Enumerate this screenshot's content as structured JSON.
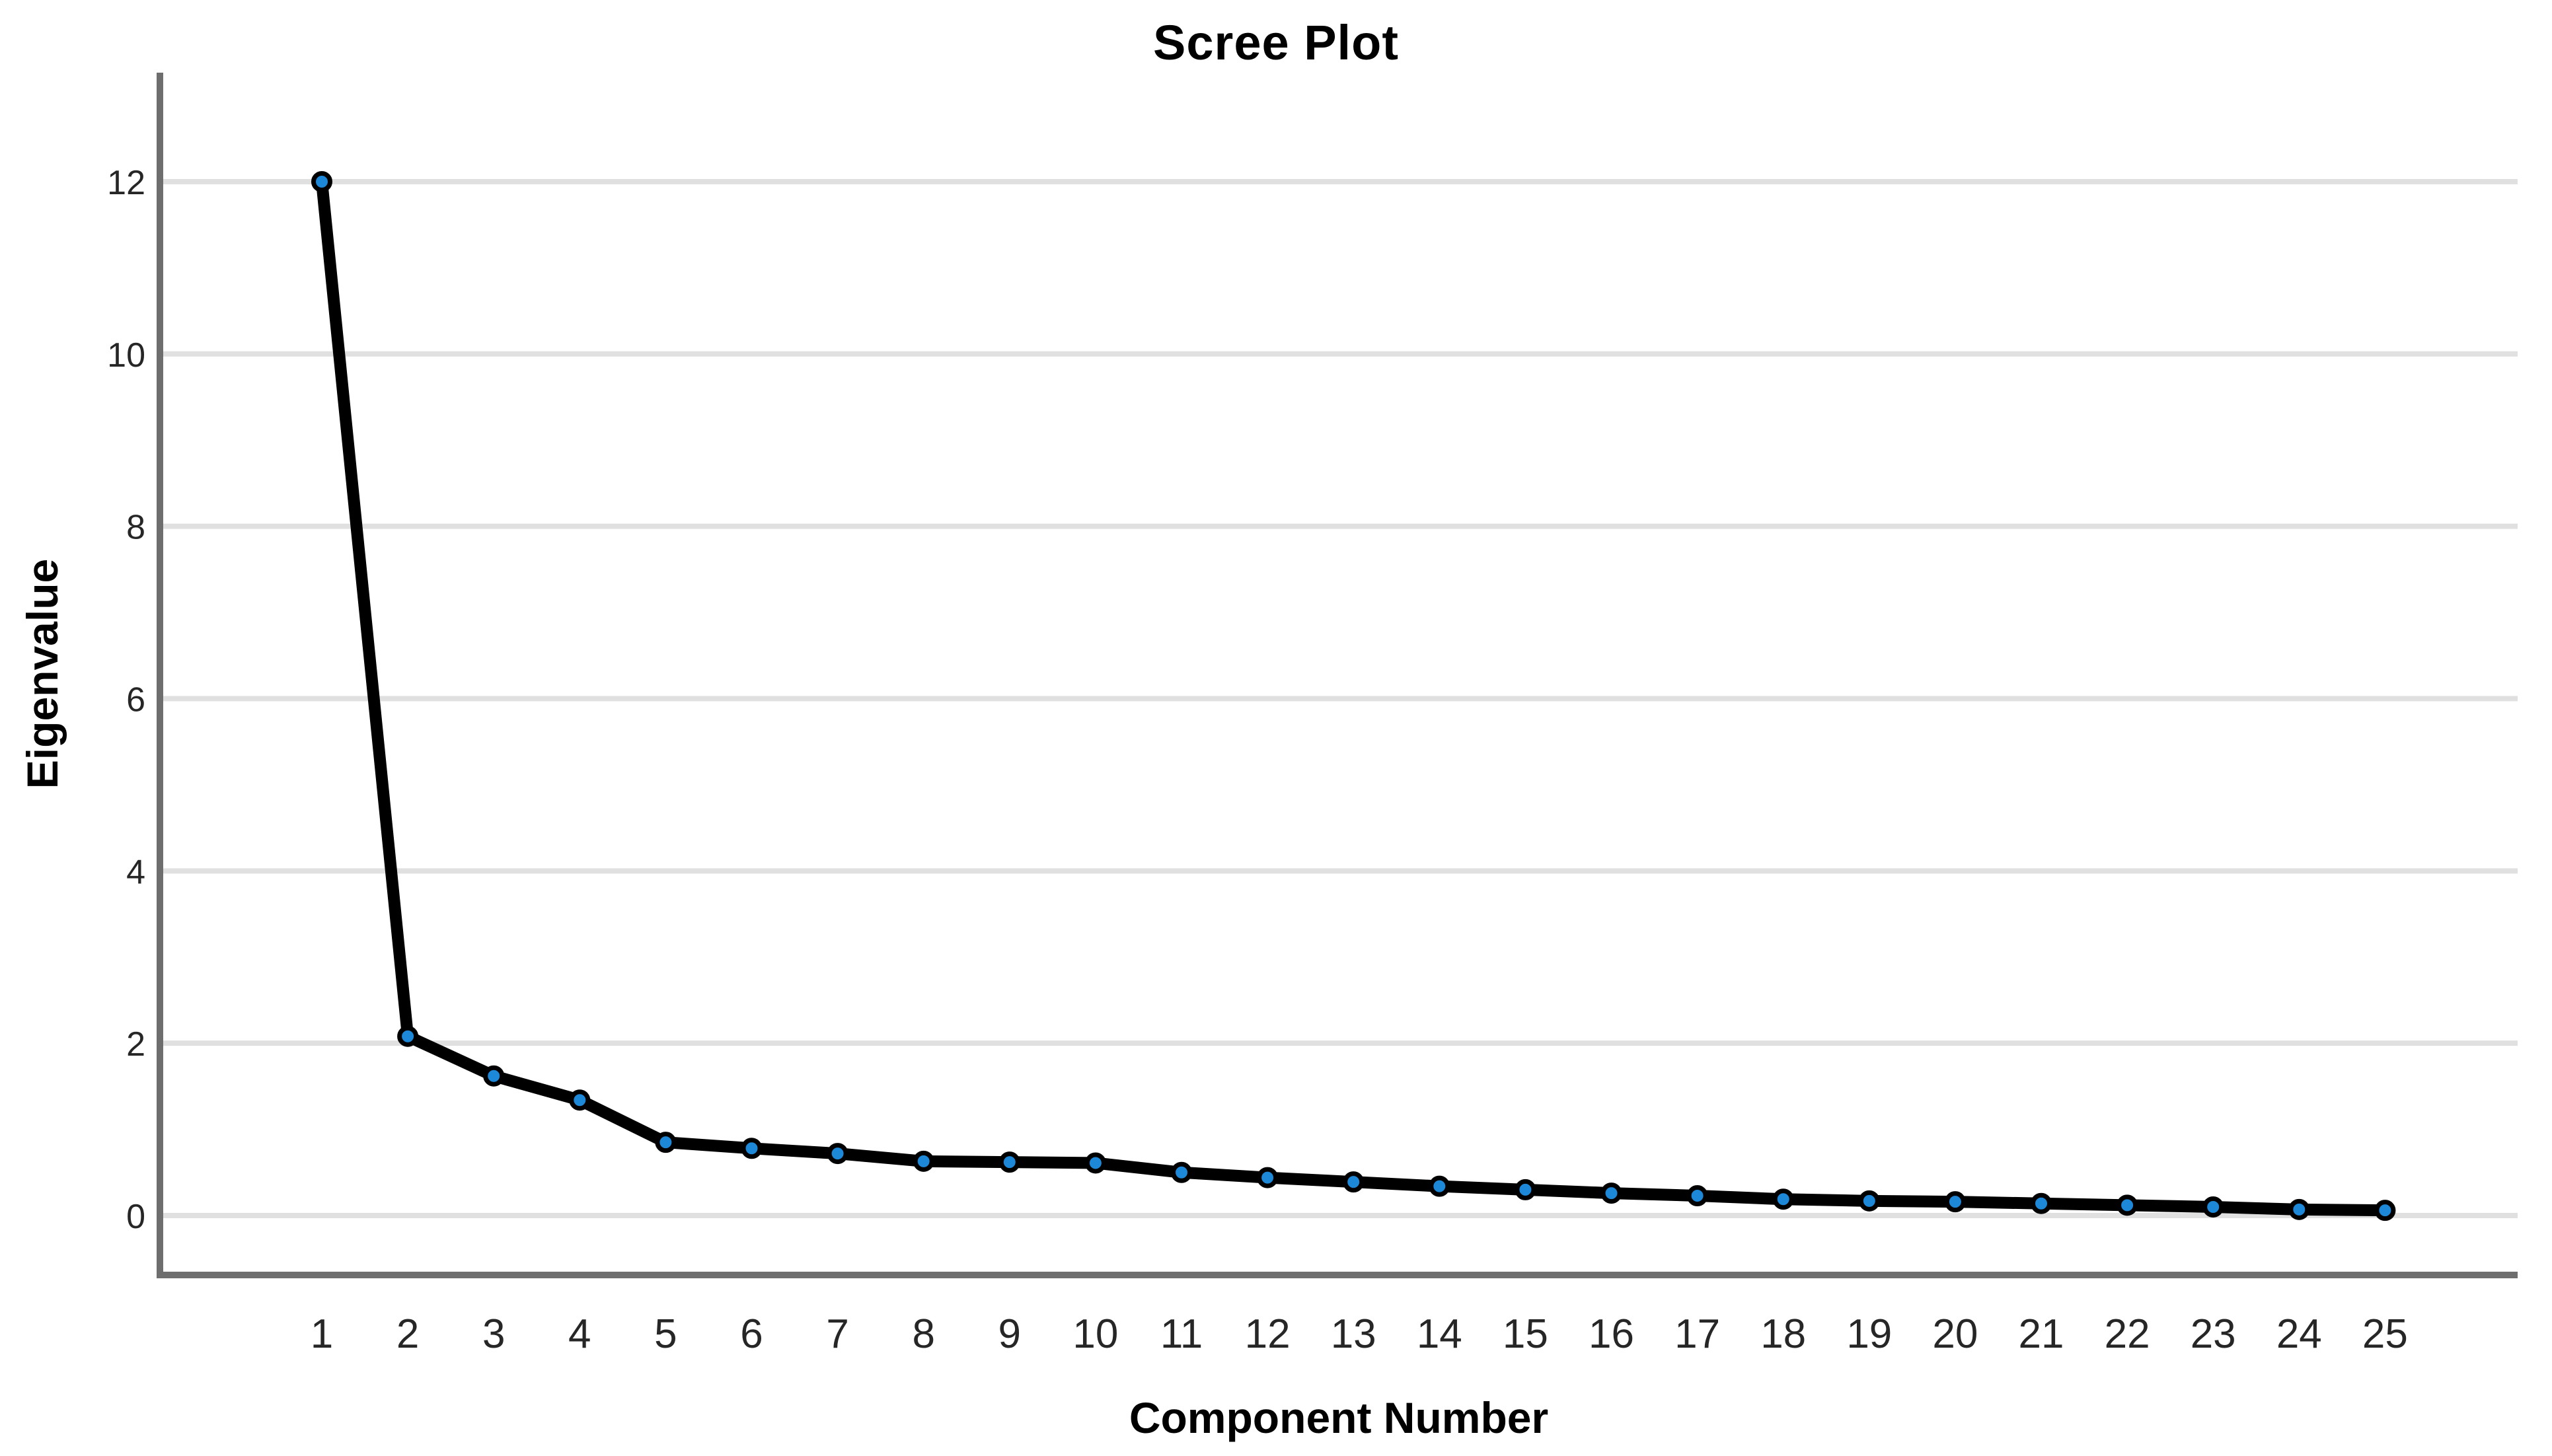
{
  "chart_data": {
    "type": "line",
    "title": "Scree Plot",
    "xlabel": "Component Number",
    "ylabel": "Eigenvalue",
    "x": [
      1,
      2,
      3,
      4,
      5,
      6,
      7,
      8,
      9,
      10,
      11,
      12,
      13,
      14,
      15,
      16,
      17,
      18,
      19,
      20,
      21,
      22,
      23,
      24,
      25
    ],
    "values": [
      12.0,
      2.08,
      1.62,
      1.34,
      0.85,
      0.78,
      0.72,
      0.63,
      0.62,
      0.61,
      0.5,
      0.44,
      0.39,
      0.34,
      0.3,
      0.26,
      0.23,
      0.19,
      0.17,
      0.16,
      0.14,
      0.12,
      0.1,
      0.07,
      0.06
    ],
    "series_name": "Eigenvalue",
    "y_ticks": [
      0,
      2,
      4,
      6,
      8,
      10,
      12
    ],
    "x_tick_labels": [
      "1",
      "2",
      "3",
      "4",
      "5",
      "6",
      "7",
      "8",
      "9",
      "10",
      "11",
      "12",
      "13",
      "14",
      "15",
      "16",
      "17",
      "18",
      "19",
      "20",
      "21",
      "22",
      "23",
      "24",
      "25"
    ],
    "ylim": [
      -0.69,
      13.26
    ],
    "grid": "horizontal-only",
    "legend": "none",
    "colors": {
      "marker_fill": "#1d87d8",
      "marker_stroke": "#000000",
      "line": "#000000",
      "gridline": "#e0e0e0",
      "axis": "#6e6e6e",
      "tick_text": "#262626",
      "background": "#ffffff"
    }
  }
}
